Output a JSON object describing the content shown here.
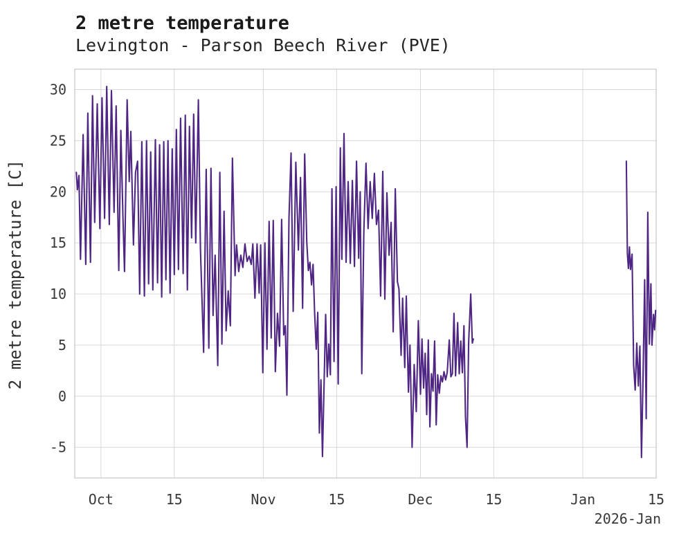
{
  "header": {
    "title": "2 metre temperature",
    "subtitle": "Levington - Parson Beech River (PVE)"
  },
  "chart_data": {
    "type": "line",
    "title": "2 metre temperature",
    "subtitle": "Levington - Parson Beech River (PVE)",
    "ylabel": "2 metre temperature [C]",
    "xlabel": "",
    "corner_label": "2026-Jan",
    "x_unit": "days since 2025-09-26",
    "xlim": [
      0,
      111
    ],
    "ylim": [
      -8,
      32
    ],
    "grid": true,
    "legend_position": "none",
    "line_color": "#4f2683",
    "background": "#ffffff",
    "grid_color": "#d8d8d8",
    "frame_color": "#c4c4c4",
    "y_ticks": [
      30,
      25,
      20,
      15,
      10,
      5,
      0,
      -5
    ],
    "x_ticks": [
      {
        "d": 5,
        "label": "Oct"
      },
      {
        "d": 19,
        "label": "15"
      },
      {
        "d": 36,
        "label": "Nov"
      },
      {
        "d": 50,
        "label": "15"
      },
      {
        "d": 66,
        "label": "Dec"
      },
      {
        "d": 80,
        "label": "15"
      },
      {
        "d": 97,
        "label": "Jan"
      },
      {
        "d": 111,
        "label": "15"
      }
    ],
    "series": [
      {
        "name": "2 metre temperature",
        "segments": [
          [
            [
              0.3,
              21.9
            ],
            [
              0.5,
              20.2
            ],
            [
              0.8,
              21.6
            ],
            [
              1.1,
              13.4
            ],
            [
              1.6,
              25.6
            ],
            [
              2.1,
              12.9
            ],
            [
              2.5,
              27.7
            ],
            [
              3.0,
              13.1
            ],
            [
              3.4,
              29.4
            ],
            [
              3.8,
              17.0
            ],
            [
              4.3,
              28.6
            ],
            [
              4.8,
              16.4
            ],
            [
              5.2,
              29.2
            ],
            [
              5.7,
              17.4
            ],
            [
              6.1,
              30.3
            ],
            [
              6.6,
              16.8
            ],
            [
              7.0,
              29.9
            ],
            [
              7.5,
              18.0
            ],
            [
              7.9,
              28.4
            ],
            [
              8.4,
              12.3
            ],
            [
              8.8,
              26.0
            ],
            [
              9.2,
              17.6
            ],
            [
              9.5,
              12.2
            ],
            [
              10.0,
              29.0
            ],
            [
              10.4,
              21.0
            ],
            [
              10.7,
              25.9
            ],
            [
              11.2,
              14.8
            ],
            [
              11.6,
              21.9
            ],
            [
              12.0,
              23.0
            ],
            [
              12.4,
              10.0
            ],
            [
              12.8,
              24.9
            ],
            [
              13.3,
              9.8
            ],
            [
              13.7,
              25.0
            ],
            [
              14.1,
              11.0
            ],
            [
              14.5,
              23.9
            ],
            [
              14.9,
              10.4
            ],
            [
              15.4,
              25.1
            ],
            [
              15.8,
              11.1
            ],
            [
              16.2,
              24.6
            ],
            [
              16.6,
              9.7
            ],
            [
              17.0,
              24.9
            ],
            [
              17.4,
              11.4
            ],
            [
              17.8,
              25.0
            ],
            [
              18.2,
              10.1
            ],
            [
              18.6,
              24.2
            ],
            [
              19.0,
              11.9
            ],
            [
              19.4,
              26.1
            ],
            [
              19.8,
              12.4
            ],
            [
              20.2,
              27.2
            ],
            [
              20.7,
              12.0
            ],
            [
              21.1,
              27.5
            ],
            [
              21.5,
              10.4
            ],
            [
              21.9,
              26.4
            ],
            [
              22.3,
              15.5
            ],
            [
              22.7,
              27.6
            ],
            [
              23.1,
              15.0
            ],
            [
              23.6,
              29.0
            ],
            [
              24.0,
              14.4
            ],
            [
              24.6,
              4.3
            ],
            [
              25.1,
              22.2
            ],
            [
              25.6,
              4.7
            ],
            [
              26.0,
              22.3
            ],
            [
              26.4,
              7.9
            ],
            [
              26.8,
              13.8
            ],
            [
              27.3,
              3.0
            ],
            [
              27.7,
              21.9
            ],
            [
              28.1,
              5.1
            ],
            [
              28.5,
              18.1
            ],
            [
              28.9,
              6.4
            ],
            [
              29.3,
              10.3
            ],
            [
              29.7,
              6.9
            ],
            [
              30.1,
              23.3
            ],
            [
              30.6,
              11.8
            ],
            [
              30.9,
              14.8
            ],
            [
              31.3,
              12.2
            ],
            [
              31.7,
              13.8
            ],
            [
              32.1,
              12.6
            ],
            [
              32.5,
              14.9
            ],
            [
              32.9,
              13.2
            ],
            [
              33.3,
              13.7
            ],
            [
              33.7,
              12.9
            ],
            [
              34.0,
              14.9
            ],
            [
              34.4,
              9.6
            ],
            [
              34.8,
              14.9
            ],
            [
              35.2,
              10.1
            ],
            [
              35.5,
              14.8
            ],
            [
              35.9,
              2.3
            ],
            [
              36.3,
              15.0
            ],
            [
              36.7,
              4.6
            ],
            [
              37.1,
              17.1
            ],
            [
              37.5,
              5.7
            ],
            [
              37.9,
              17.2
            ],
            [
              38.3,
              2.4
            ],
            [
              38.7,
              8.1
            ],
            [
              39.1,
              4.9
            ],
            [
              39.5,
              17.3
            ],
            [
              39.9,
              6.0
            ],
            [
              40.2,
              6.9
            ],
            [
              40.5,
              0.1
            ],
            [
              40.9,
              17.4
            ],
            [
              41.3,
              23.8
            ],
            [
              41.7,
              8.3
            ],
            [
              42.2,
              22.9
            ],
            [
              42.7,
              14.3
            ],
            [
              43.1,
              21.4
            ],
            [
              43.5,
              8.6
            ],
            [
              43.9,
              23.7
            ],
            [
              44.3,
              15.1
            ],
            [
              44.6,
              12.3
            ],
            [
              44.9,
              13.1
            ],
            [
              45.2,
              10.9
            ],
            [
              45.5,
              12.9
            ],
            [
              45.8,
              8.1
            ],
            [
              46.1,
              4.6
            ],
            [
              46.4,
              8.2
            ],
            [
              46.7,
              -3.6
            ],
            [
              47.0,
              1.6
            ],
            [
              47.3,
              -5.9
            ],
            [
              47.6,
              1.1
            ],
            [
              47.9,
              8.0
            ],
            [
              48.2,
              1.9
            ],
            [
              48.5,
              5.1
            ],
            [
              48.8,
              2.1
            ],
            [
              49.1,
              20.3
            ],
            [
              49.5,
              3.4
            ],
            [
              49.9,
              20.5
            ],
            [
              50.3,
              1.2
            ],
            [
              50.7,
              24.3
            ],
            [
              51.0,
              13.4
            ],
            [
              51.4,
              25.7
            ],
            [
              51.8,
              13.1
            ],
            [
              52.2,
              21.0
            ],
            [
              52.6,
              13.0
            ],
            [
              53.0,
              21.1
            ],
            [
              53.4,
              12.7
            ],
            [
              53.8,
              23.0
            ],
            [
              54.2,
              13.5
            ],
            [
              54.5,
              20.0
            ],
            [
              54.8,
              2.2
            ],
            [
              55.2,
              16.2
            ],
            [
              55.6,
              22.8
            ],
            [
              56.0,
              16.4
            ],
            [
              56.4,
              21.0
            ],
            [
              56.8,
              17.4
            ],
            [
              57.2,
              21.8
            ],
            [
              57.6,
              16.8
            ],
            [
              58.0,
              18.2
            ],
            [
              58.4,
              9.8
            ],
            [
              58.8,
              22.0
            ],
            [
              59.2,
              9.5
            ],
            [
              59.6,
              19.9
            ],
            [
              60.0,
              13.8
            ],
            [
              60.4,
              17.0
            ],
            [
              60.8,
              6.3
            ],
            [
              61.2,
              20.3
            ],
            [
              61.6,
              11.2
            ],
            [
              61.9,
              10.5
            ],
            [
              62.3,
              4.0
            ],
            [
              62.6,
              9.6
            ],
            [
              63.0,
              2.8
            ],
            [
              63.3,
              9.8
            ],
            [
              63.7,
              0.4
            ],
            [
              64.0,
              5.0
            ],
            [
              64.4,
              -5.0
            ],
            [
              64.8,
              3.1
            ],
            [
              65.2,
              -1.5
            ],
            [
              65.6,
              7.4
            ],
            [
              66.0,
              0.2
            ],
            [
              66.3,
              5.6
            ],
            [
              66.6,
              0.8
            ],
            [
              66.9,
              4.2
            ],
            [
              67.2,
              -1.8
            ],
            [
              67.5,
              5.5
            ],
            [
              67.8,
              -3.0
            ],
            [
              68.1,
              2.2
            ],
            [
              68.4,
              0.5
            ],
            [
              68.7,
              5.4
            ],
            [
              69.0,
              -2.8
            ],
            [
              69.3,
              2.1
            ],
            [
              69.6,
              0.3
            ],
            [
              69.9,
              2.0
            ],
            [
              70.2,
              1.4
            ],
            [
              70.5,
              2.4
            ],
            [
              70.8,
              1.6
            ],
            [
              71.1,
              2.3
            ],
            [
              71.5,
              5.5
            ],
            [
              71.8,
              1.9
            ],
            [
              72.1,
              2.2
            ],
            [
              72.4,
              8.1
            ],
            [
              72.7,
              2.0
            ],
            [
              73.1,
              7.2
            ],
            [
              73.4,
              2.2
            ],
            [
              73.7,
              5.4
            ],
            [
              74.0,
              2.3
            ],
            [
              74.3,
              6.9
            ],
            [
              74.6,
              -2.0
            ],
            [
              74.9,
              -5.0
            ],
            [
              75.2,
              5.3
            ],
            [
              75.6,
              10.0
            ],
            [
              75.9,
              5.2
            ],
            [
              76.1,
              5.6
            ]
          ],
          [
            [
              105.3,
              23.0
            ],
            [
              105.5,
              14.0
            ],
            [
              105.7,
              12.5
            ],
            [
              105.9,
              14.6
            ],
            [
              106.1,
              12.4
            ],
            [
              106.4,
              13.9
            ],
            [
              106.7,
              3.0
            ],
            [
              107.0,
              0.6
            ],
            [
              107.3,
              5.2
            ],
            [
              107.6,
              1.0
            ],
            [
              107.9,
              4.9
            ],
            [
              108.2,
              -6.0
            ],
            [
              108.5,
              2.0
            ],
            [
              108.8,
              11.4
            ],
            [
              109.1,
              -2.2
            ],
            [
              109.4,
              18.0
            ],
            [
              109.7,
              5.1
            ],
            [
              110.0,
              11.0
            ],
            [
              110.2,
              5.0
            ],
            [
              110.5,
              8.0
            ],
            [
              110.7,
              6.5
            ],
            [
              110.9,
              8.4
            ]
          ]
        ]
      }
    ]
  }
}
